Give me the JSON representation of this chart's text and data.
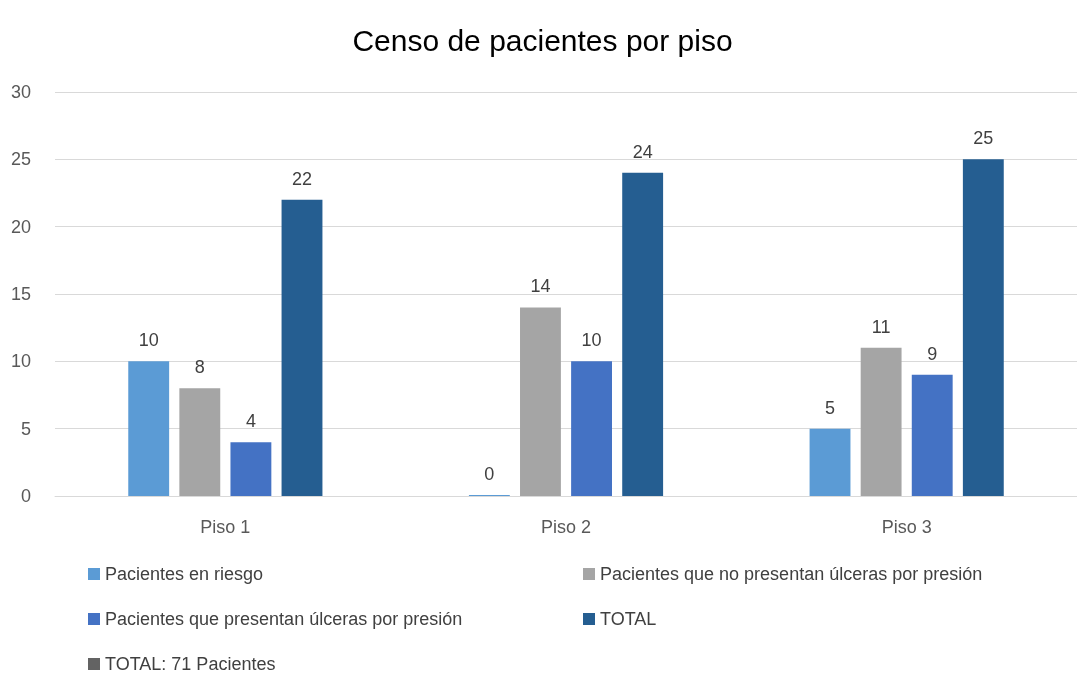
{
  "chart_data": {
    "type": "bar",
    "title": "Censo de pacientes por piso",
    "categories": [
      "Piso 1",
      "Piso 2",
      "Piso 3"
    ],
    "series": [
      {
        "name": "Pacientes en riesgo",
        "color": "#5b9bd5",
        "values": [
          10,
          0,
          5
        ]
      },
      {
        "name": "Pacientes que no presentan úlceras por presión",
        "color": "#a5a5a5",
        "values": [
          8,
          14,
          11
        ]
      },
      {
        "name": "Pacientes que presentan úlceras por presión",
        "color": "#4472c4",
        "values": [
          4,
          10,
          9
        ]
      },
      {
        "name": "TOTAL",
        "color": "#255e91",
        "values": [
          22,
          24,
          25
        ]
      },
      {
        "name": "TOTAL: 71 Pacientes",
        "color": "#636363",
        "type": "line",
        "values": [
          null,
          null,
          null
        ]
      }
    ],
    "ylim": [
      0,
      30
    ],
    "yticks": [
      0,
      5,
      10,
      15,
      20,
      25,
      30
    ],
    "grid": "y",
    "legend": "bottom",
    "data_labels": true
  }
}
